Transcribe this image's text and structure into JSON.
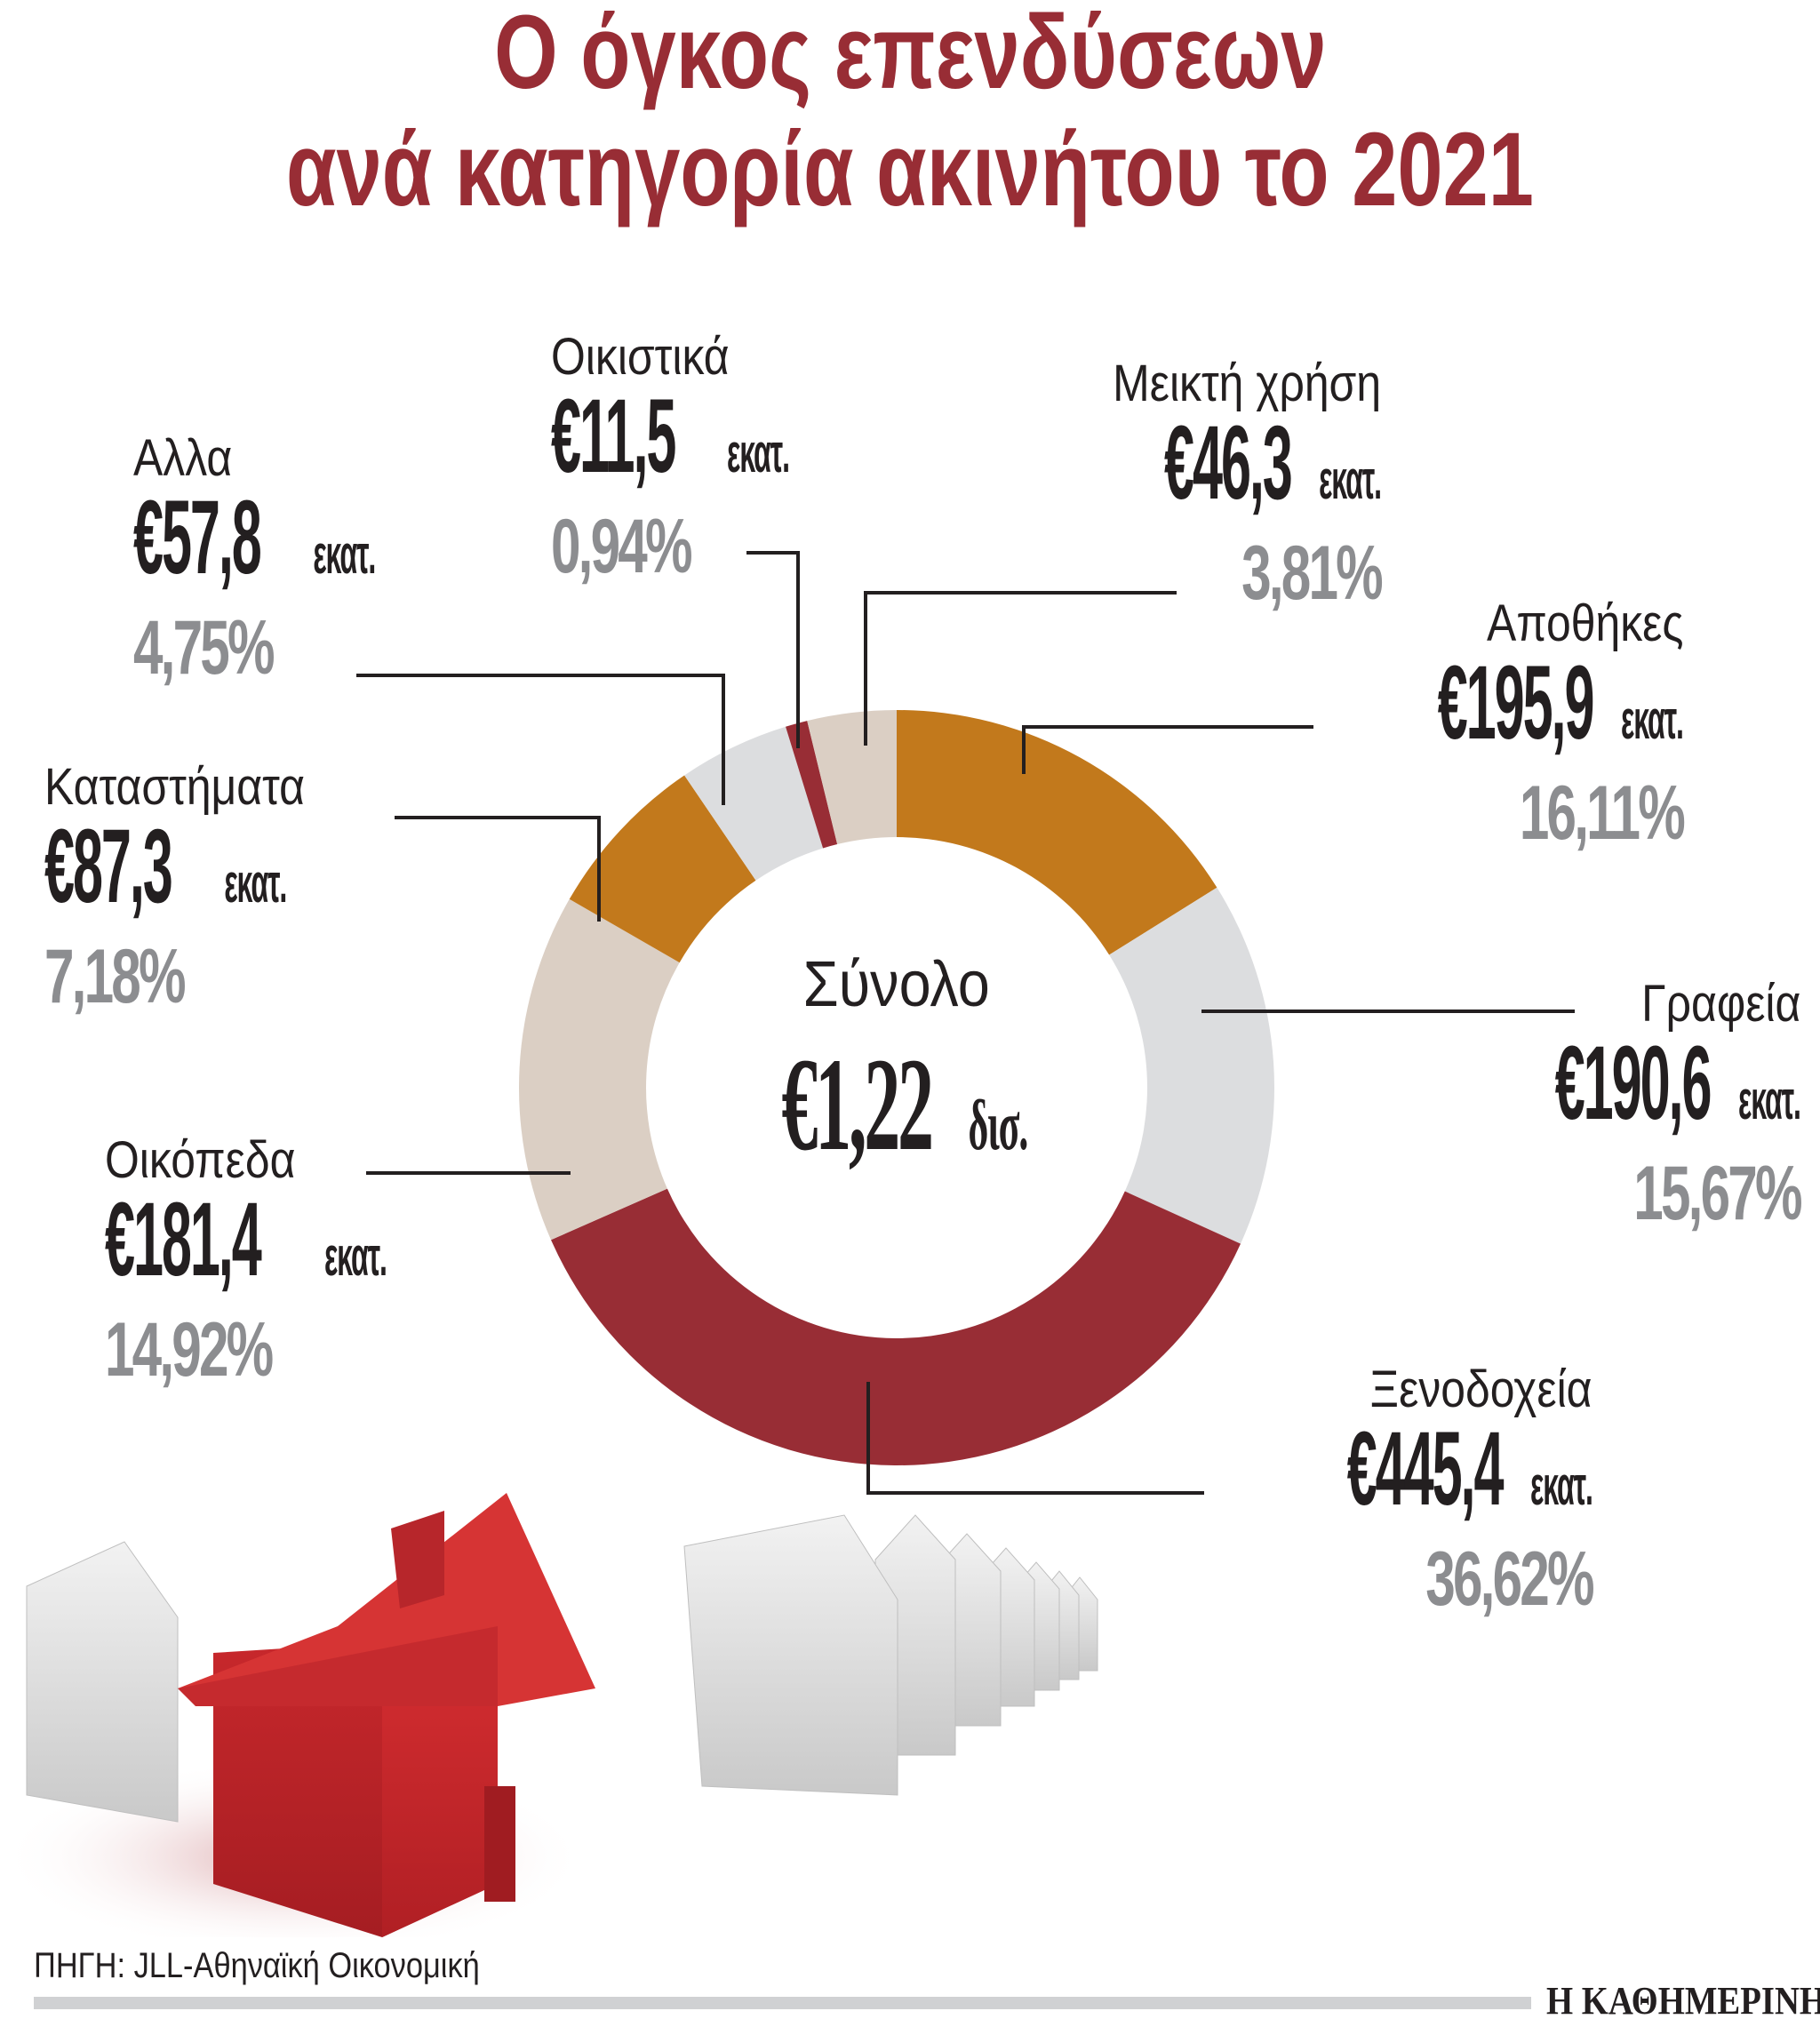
{
  "title": {
    "line1": "Ο όγκος επενδύσεων",
    "line2": "ανά κατηγορία ακινήτου το 2021"
  },
  "center": {
    "label": "Σύνολο",
    "value": "€1,22",
    "unit": "δισ."
  },
  "labels": {
    "alla": {
      "name": "Αλλα",
      "value": "€57,8",
      "unit": "εκατ.",
      "pct": "4,75%"
    },
    "oikistika": {
      "name": "Οικιστικά",
      "value": "€11,5",
      "unit": "εκατ.",
      "pct": "0,94%"
    },
    "meikti": {
      "name": "Μεικτή χρήση",
      "value": "€46,3",
      "unit": "εκατ.",
      "pct": "3,81%"
    },
    "apothikes": {
      "name": "Αποθήκες",
      "value": "€195,9",
      "unit": "εκατ.",
      "pct": "16,11%"
    },
    "katastimata": {
      "name": "Καταστήματα",
      "value": "€87,3",
      "unit": "εκατ.",
      "pct": "7,18%"
    },
    "grafeia": {
      "name": "Γραφεία",
      "value": "€190,6",
      "unit": "εκατ.",
      "pct": "15,67%"
    },
    "oikopeda": {
      "name": "Οικόπεδα",
      "value": "€181,4",
      "unit": "εκατ.",
      "pct": "14,92%"
    },
    "xenodoxeia": {
      "name": "Ξενοδοχεία",
      "value": "€445,4",
      "unit": "εκατ.",
      "pct": "36,62%"
    }
  },
  "footer": {
    "source": "ΠΗΓΗ: JLL-Αθηναϊκή Οικονομική",
    "brand": "Η ΚΑΘΗΜΕΡΙΝΗ"
  },
  "colors": {
    "title": "#982D35",
    "orange": "#C2791C",
    "light_grey": "#DCDDDF",
    "beige": "#DBCFC4",
    "dark_red": "#982D35",
    "pct_grey": "#8C8D90",
    "text": "#231F20"
  },
  "chart_data": {
    "type": "pie",
    "variant": "donut",
    "title": "Ο όγκος επενδύσεων ανά κατηγορία ακινήτου το 2021",
    "center_label": "Σύνολο €1,22 δισ.",
    "total": 1216.2,
    "total_display": "€1,22 δισ.",
    "unit": "εκατ. €",
    "start_angle_deg": 0,
    "direction": "clockwise",
    "categories": [
      "Αποθήκες",
      "Γραφεία",
      "Ξενοδοχεία",
      "Οικόπεδα",
      "Καταστήματα",
      "Αλλα",
      "Οικιστικά",
      "Μεικτή χρήση"
    ],
    "values": [
      195.9,
      190.6,
      445.4,
      181.4,
      87.3,
      57.8,
      11.5,
      46.3
    ],
    "percentages": [
      16.11,
      15.67,
      36.62,
      14.92,
      7.18,
      4.75,
      0.94,
      3.81
    ],
    "slice_colors": [
      "#C2791C",
      "#DCDDDF",
      "#982D35",
      "#DBCFC4",
      "#C2791C",
      "#DCDDDF",
      "#982D35",
      "#DBCFC4"
    ],
    "source": "ΠΗΓΗ: JLL-Αθηναϊκή Οικονομική",
    "legend": "none (direct labels with leader lines)"
  }
}
